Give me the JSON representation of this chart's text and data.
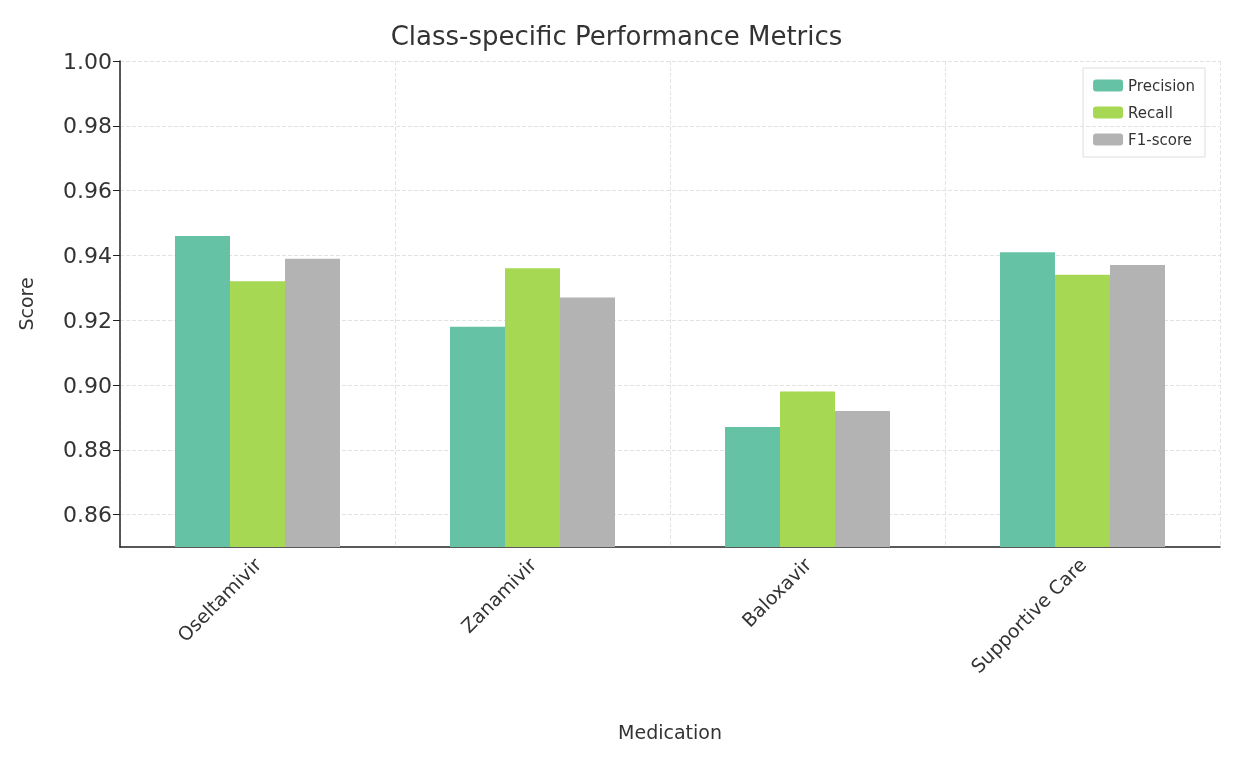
{
  "chart_data": {
    "type": "bar",
    "title": "Class-specific Performance Metrics",
    "xlabel": "Medication",
    "ylabel": "Score",
    "categories": [
      "Oseltamivir",
      "Zanamivir",
      "Baloxavir",
      "Supportive Care"
    ],
    "series": [
      {
        "name": "Precision",
        "color": "#66c2a5",
        "values": [
          0.946,
          0.918,
          0.887,
          0.941
        ]
      },
      {
        "name": "Recall",
        "color": "#a6d854",
        "values": [
          0.932,
          0.936,
          0.898,
          0.934
        ]
      },
      {
        "name": "F1-score",
        "color": "#b3b3b3",
        "values": [
          0.939,
          0.927,
          0.892,
          0.937
        ]
      }
    ],
    "ylim": [
      0.85,
      1.0
    ],
    "yticks": [
      {
        "value": 0.86,
        "label": "0.86"
      },
      {
        "value": 0.88,
        "label": "0.88"
      },
      {
        "value": 0.9,
        "label": "0.90"
      },
      {
        "value": 0.92,
        "label": "0.92"
      },
      {
        "value": 0.94,
        "label": "0.94"
      },
      {
        "value": 0.96,
        "label": "0.96"
      },
      {
        "value": 0.98,
        "label": "0.98"
      },
      {
        "value": 1.0,
        "label": "1.00"
      }
    ],
    "grid": true,
    "legend": "top right"
  }
}
